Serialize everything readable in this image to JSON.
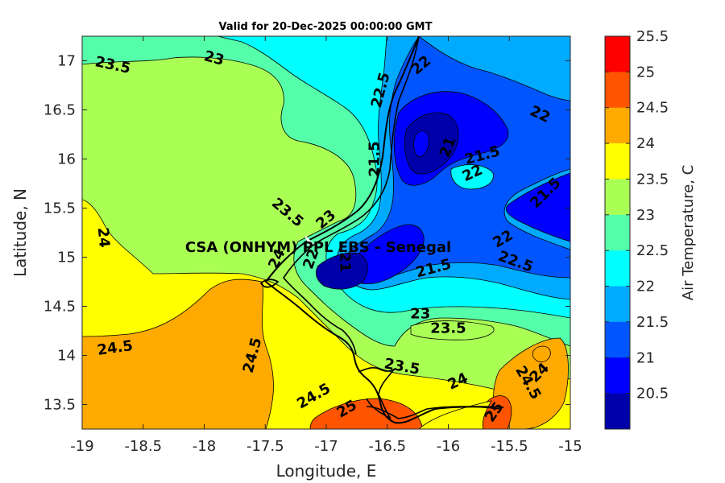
{
  "title": "Valid for 20-Dec-2025 00:00:00 GMT",
  "x_axis": {
    "label": "Longitude, E",
    "ticks": [
      "-19",
      "-18.5",
      "-18",
      "-17.5",
      "-17",
      "-16.5",
      "-16",
      "-15.5",
      "-15"
    ]
  },
  "y_axis": {
    "label": "Latitude, N",
    "ticks": [
      "17",
      "16.5",
      "16",
      "15.5",
      "15",
      "14.5",
      "14",
      "13.5"
    ]
  },
  "station": {
    "label": "CSA (ONHYM) PPL EBS  - Senegal",
    "lon": -17.12,
    "lat": 15.12
  },
  "colorbar": {
    "label": "Air Temperature, C",
    "ticks": [
      "25.5",
      "25",
      "24.5",
      "24",
      "23.5",
      "23",
      "22.5",
      "22",
      "21.5",
      "21",
      "20.5"
    ],
    "colors": [
      "#ff0000",
      "#ff5500",
      "#ffaa00",
      "#ffff00",
      "#aaff55",
      "#55ffaa",
      "#00ffff",
      "#00aaff",
      "#0055ff",
      "#0000ff",
      "#0000aa"
    ]
  },
  "contour_labels": [
    {
      "text": "23.5",
      "lon": -18.75,
      "lat": 16.95,
      "rot": 12
    },
    {
      "text": "23",
      "lon": -17.92,
      "lat": 17.02,
      "rot": 15
    },
    {
      "text": "22.5",
      "lon": -16.55,
      "lat": 16.7,
      "rot": -75
    },
    {
      "text": "22",
      "lon": -16.22,
      "lat": 16.95,
      "rot": -40
    },
    {
      "text": "22",
      "lon": -15.25,
      "lat": 16.45,
      "rot": 25
    },
    {
      "text": "21",
      "lon": -16.0,
      "lat": 16.12,
      "rot": -70
    },
    {
      "text": "21.5",
      "lon": -15.72,
      "lat": 16.03,
      "rot": -15
    },
    {
      "text": "21.5",
      "lon": -16.6,
      "lat": 16.0,
      "rot": -90
    },
    {
      "text": "22",
      "lon": -15.8,
      "lat": 15.85,
      "rot": -25
    },
    {
      "text": "21.5",
      "lon": -15.2,
      "lat": 15.65,
      "rot": -45
    },
    {
      "text": "23.5",
      "lon": -17.32,
      "lat": 15.45,
      "rot": 40
    },
    {
      "text": "23",
      "lon": -17.0,
      "lat": 15.38,
      "rot": -40
    },
    {
      "text": "24",
      "lon": -18.83,
      "lat": 15.2,
      "rot": 85
    },
    {
      "text": "24",
      "lon": -17.4,
      "lat": 14.98,
      "rot": -65
    },
    {
      "text": "22",
      "lon": -17.12,
      "lat": 14.98,
      "rot": -70
    },
    {
      "text": "21",
      "lon": -16.85,
      "lat": 14.95,
      "rot": 90
    },
    {
      "text": "21.5",
      "lon": -16.12,
      "lat": 14.88,
      "rot": -15
    },
    {
      "text": "22",
      "lon": -15.55,
      "lat": 15.18,
      "rot": -30
    },
    {
      "text": "22.5",
      "lon": -15.45,
      "lat": 14.95,
      "rot": 20
    },
    {
      "text": "23",
      "lon": -16.23,
      "lat": 14.42,
      "rot": 0
    },
    {
      "text": "23.5",
      "lon": -16.0,
      "lat": 14.27,
      "rot": 0
    },
    {
      "text": "24.5",
      "lon": -18.73,
      "lat": 14.07,
      "rot": -8
    },
    {
      "text": "24.5",
      "lon": -17.6,
      "lat": 14.0,
      "rot": -75
    },
    {
      "text": "23.5",
      "lon": -16.38,
      "lat": 13.88,
      "rot": 10
    },
    {
      "text": "24",
      "lon": -15.92,
      "lat": 13.73,
      "rot": -25
    },
    {
      "text": "24.5",
      "lon": -15.35,
      "lat": 13.72,
      "rot": 60
    },
    {
      "text": "24",
      "lon": -15.25,
      "lat": 13.82,
      "rot": -45
    },
    {
      "text": "24.5",
      "lon": -17.1,
      "lat": 13.58,
      "rot": -30
    },
    {
      "text": "25",
      "lon": -16.83,
      "lat": 13.45,
      "rot": -30
    },
    {
      "text": "25",
      "lon": -15.62,
      "lat": 13.42,
      "rot": -55
    }
  ]
}
